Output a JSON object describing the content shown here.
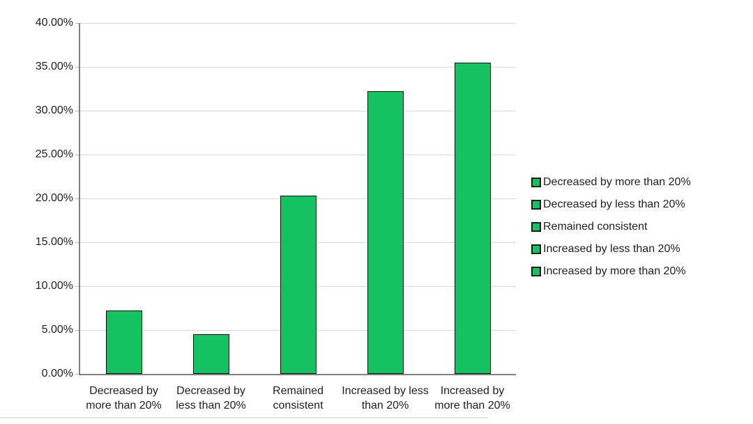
{
  "chart_data": {
    "type": "bar",
    "title": "",
    "xlabel": "",
    "ylabel": "",
    "categories": [
      "Decreased by more than 20%",
      "Decreased by less than 20%",
      "Remained consistent",
      "Increased by less than 20%",
      "Increased by more than 20%"
    ],
    "category_lines": [
      [
        "Decreased by",
        "more than 20%"
      ],
      [
        "Decreased by",
        "less than 20%"
      ],
      [
        "Remained",
        "consistent"
      ],
      [
        "Increased by less",
        "than 20%"
      ],
      [
        "Increased by",
        "more than 20%"
      ]
    ],
    "values": [
      7.2,
      4.5,
      20.3,
      32.2,
      35.5
    ],
    "value_unit": "%",
    "ylim": [
      0,
      40
    ],
    "ytick_step": 5,
    "ytick_labels": [
      "0.00%",
      "5.00%",
      "10.00%",
      "15.00%",
      "20.00%",
      "25.00%",
      "30.00%",
      "35.00%",
      "40.00%"
    ],
    "grid": true,
    "legend_position": "right",
    "legend": [
      "Decreased by more than 20%",
      "Decreased by less than 20%",
      "Remained consistent",
      "Increased by less than 20%",
      "Increased by more than 20%"
    ],
    "colors": {
      "bar_fill": "#15c261",
      "bar_border": "#0b0b0b",
      "grid": "#d9d9d9",
      "axis": "#7f7f7f",
      "text": "#212121",
      "background": "#ffffff"
    }
  }
}
